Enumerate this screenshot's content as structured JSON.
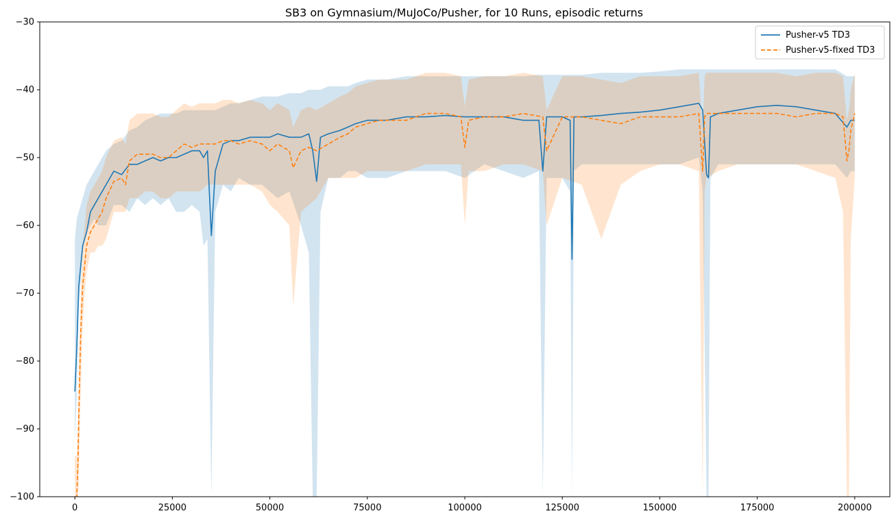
{
  "chart_data": {
    "type": "line",
    "title": "SB3 on Gymnasium/MuJoCo/Pusher, for 10 Runs, episodic returns",
    "xlabel": "",
    "ylabel": "",
    "xlim": [
      -9000,
      209000
    ],
    "ylim": [
      -100,
      -30
    ],
    "xticks": [
      0,
      25000,
      50000,
      75000,
      100000,
      125000,
      150000,
      175000,
      200000
    ],
    "xtick_labels": [
      "0",
      "25000",
      "50000",
      "75000",
      "100000",
      "125000",
      "150000",
      "175000",
      "200000"
    ],
    "yticks": [
      -100,
      -90,
      -80,
      -70,
      -60,
      -50,
      -40,
      -30
    ],
    "ytick_labels": [
      "−100",
      "−90",
      "−80",
      "−70",
      "−60",
      "−50",
      "−40",
      "−30"
    ],
    "grid": false,
    "legend_position": "top-right",
    "series": [
      {
        "name": "Pusher-v5 TD3",
        "color": "#1f77b4",
        "style": "solid",
        "fill_alpha": 0.2,
        "x": [
          0,
          500,
          1000,
          1500,
          2000,
          2500,
          3000,
          4000,
          5000,
          6000,
          7000,
          8000,
          10000,
          12000,
          14000,
          16000,
          18000,
          20000,
          22000,
          24000,
          26000,
          28000,
          30000,
          32000,
          33000,
          34000,
          35000,
          36000,
          38000,
          40000,
          42000,
          45000,
          48000,
          50000,
          52000,
          55000,
          58000,
          60000,
          61000,
          62000,
          63000,
          65000,
          68000,
          70000,
          72000,
          75000,
          78000,
          80000,
          85000,
          90000,
          95000,
          100000,
          105000,
          110000,
          115000,
          119000,
          120000,
          121000,
          125000,
          127000,
          127500,
          128000,
          130000,
          135000,
          140000,
          145000,
          150000,
          155000,
          160000,
          161000,
          162000,
          162500,
          163000,
          165000,
          170000,
          175000,
          180000,
          185000,
          190000,
          195000,
          198000,
          199000,
          200000
        ],
        "y": [
          -84.5,
          -78,
          -69,
          -66,
          -63,
          -62,
          -61,
          -58,
          -57,
          -56,
          -55,
          -54,
          -52,
          -52.5,
          -51,
          -51,
          -50.5,
          -50,
          -50.5,
          -50,
          -50,
          -49.5,
          -49,
          -49,
          -50,
          -49,
          -61.5,
          -52,
          -48,
          -47.5,
          -47.5,
          -47,
          -47,
          -47,
          -46.5,
          -47,
          -47,
          -46.5,
          -49,
          -53.5,
          -47,
          -46.5,
          -46,
          -45.5,
          -45,
          -44.5,
          -44.5,
          -44.5,
          -44,
          -44,
          -43.8,
          -44,
          -44,
          -44,
          -44.5,
          -44.5,
          -52,
          -44,
          -44,
          -44.5,
          -65,
          -44,
          -44,
          -43.8,
          -43.5,
          -43.3,
          -43,
          -42.5,
          -42,
          -43,
          -52.5,
          -53,
          -44,
          -43.5,
          -43,
          -42.5,
          -42.3,
          -42.5,
          -43,
          -43.5,
          -45.5,
          -44.5,
          -44.5
        ],
        "lower": [
          -92,
          -85,
          -72,
          -68,
          -64,
          -62,
          -61,
          -60,
          -59,
          -60,
          -60,
          -60,
          -57,
          -57,
          -58,
          -56,
          -57,
          -56,
          -57,
          -56,
          -58,
          -58,
          -57,
          -58,
          -63,
          -62,
          -100,
          -58,
          -54,
          -55,
          -53,
          -54,
          -54,
          -55,
          -56,
          -55,
          -60,
          -64,
          -100,
          -100,
          -58,
          -53,
          -53,
          -52,
          -52,
          -53,
          -53,
          -53,
          -52,
          -52,
          -52,
          -53,
          -51,
          -52,
          -53,
          -52,
          -100,
          -53,
          -53,
          -55,
          -100,
          -52,
          -51,
          -51,
          -51,
          -51,
          -51,
          -51,
          -50,
          -55,
          -100,
          -100,
          -53,
          -51,
          -51,
          -51,
          -51,
          -51,
          -51,
          -51,
          -53,
          -52,
          -52
        ],
        "upper": [
          -62,
          -59,
          -58,
          -57,
          -56,
          -55,
          -54,
          -53,
          -52,
          -51,
          -50,
          -49,
          -48,
          -47.5,
          -46,
          -45.5,
          -44.5,
          -44,
          -43.5,
          -43.5,
          -43.5,
          -43,
          -43,
          -43,
          -43,
          -43,
          -43,
          -43,
          -42.5,
          -42,
          -42,
          -41.5,
          -41,
          -41,
          -41,
          -40.5,
          -40.5,
          -40,
          -40,
          -40,
          -40,
          -39.5,
          -39.5,
          -39.5,
          -39,
          -38.5,
          -38.5,
          -38.5,
          -38,
          -38,
          -38,
          -38,
          -38,
          -38,
          -38,
          -37.8,
          -37.8,
          -37.8,
          -37.8,
          -37.8,
          -37.8,
          -37.8,
          -37.8,
          -37.5,
          -37.5,
          -37.5,
          -37.3,
          -37,
          -37,
          -37,
          -37,
          -37,
          -37,
          -37,
          -37,
          -37,
          -37,
          -37,
          -37,
          -37,
          -38,
          -38,
          -38
        ]
      },
      {
        "name": "Pusher-v5-fixed TD3",
        "color": "#ff7f0e",
        "style": "dashed",
        "fill_alpha": 0.2,
        "x": [
          0,
          500,
          800,
          1000,
          1500,
          2000,
          2500,
          3000,
          4000,
          5000,
          6000,
          7000,
          8000,
          10000,
          12000,
          13000,
          14000,
          16000,
          18000,
          20000,
          22000,
          24000,
          26000,
          28000,
          30000,
          32000,
          34000,
          36000,
          38000,
          40000,
          42000,
          45000,
          48000,
          50000,
          52000,
          55000,
          56000,
          58000,
          60000,
          62000,
          65000,
          68000,
          70000,
          72000,
          75000,
          78000,
          80000,
          85000,
          90000,
          95000,
          99000,
          100000,
          101000,
          105000,
          110000,
          115000,
          120000,
          121000,
          125000,
          130000,
          135000,
          140000,
          145000,
          150000,
          155000,
          160000,
          161000,
          161500,
          162000,
          165000,
          170000,
          175000,
          180000,
          185000,
          190000,
          195000,
          197000,
          198000,
          198500,
          199000,
          200000
        ],
        "y": [
          -100,
          -100,
          -95,
          -88,
          -76,
          -69,
          -66,
          -63,
          -61,
          -60,
          -59,
          -58,
          -56,
          -53.5,
          -53,
          -54,
          -50.5,
          -49.5,
          -49.5,
          -49.5,
          -50,
          -50,
          -49,
          -48,
          -48.5,
          -48,
          -48,
          -48,
          -47.5,
          -47.5,
          -48,
          -47.5,
          -48,
          -49,
          -48,
          -49,
          -51.5,
          -49,
          -48.5,
          -49,
          -48,
          -47,
          -46.5,
          -45.5,
          -45,
          -44.5,
          -44.5,
          -44.5,
          -43.5,
          -43.5,
          -44,
          -48.5,
          -44.5,
          -44,
          -44,
          -43.5,
          -44,
          -49,
          -44,
          -44,
          -44.5,
          -45,
          -44,
          -44,
          -44,
          -43.5,
          -52,
          -44,
          -43.5,
          -43.5,
          -43.5,
          -43.5,
          -43.5,
          -44,
          -43.5,
          -43.5,
          -44,
          -50.5,
          -49,
          -46,
          -43.5
        ],
        "lower": [
          -100,
          -100,
          -100,
          -98,
          -85,
          -75,
          -70,
          -67,
          -64,
          -64,
          -63,
          -63,
          -62,
          -58,
          -58,
          -58,
          -56,
          -56,
          -55,
          -55,
          -56,
          -56,
          -55,
          -55,
          -55,
          -55,
          -54,
          -54,
          -54,
          -54,
          -54,
          -54,
          -55,
          -57,
          -58,
          -60,
          -72,
          -58,
          -57,
          -56,
          -53,
          -53,
          -53,
          -53,
          -52,
          -52,
          -52,
          -52,
          -51,
          -51,
          -51,
          -60,
          -52,
          -52,
          -51,
          -51,
          -52,
          -60,
          -53,
          -54,
          -62,
          -54,
          -52,
          -51,
          -51,
          -52,
          -100,
          -55,
          -53,
          -52,
          -51,
          -51,
          -51,
          -51,
          -52,
          -53,
          -58,
          -100,
          -100,
          -62,
          -53
        ]
      }
    ]
  }
}
